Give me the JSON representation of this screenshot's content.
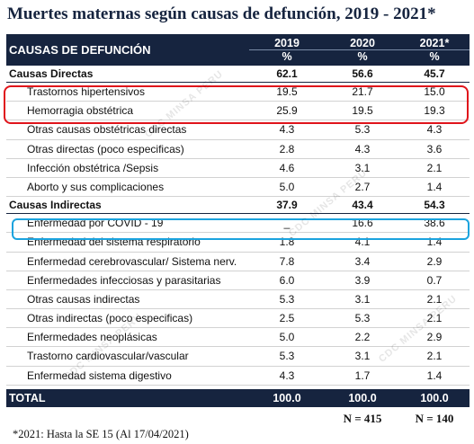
{
  "title": "Muertes maternas según causas de defunción, 2019 - 2021*",
  "header": {
    "label": "CAUSAS DE DEFUNCIÓN",
    "years": [
      "2019",
      "2020",
      "2021*"
    ],
    "unit": "%"
  },
  "directas": {
    "label": "Causas Directas",
    "values": [
      "62.1",
      "56.6",
      "45.7"
    ],
    "rows": [
      {
        "label": "Trastornos hipertensivos",
        "values": [
          "19.5",
          "21.7",
          "15.0"
        ]
      },
      {
        "label": "Hemorragia obstétrica",
        "values": [
          "25.9",
          "19.5",
          "19.3"
        ]
      },
      {
        "label": "Otras causas obstétricas directas",
        "values": [
          "4.3",
          "5.3",
          "4.3"
        ]
      },
      {
        "label": "Otras directas (poco especificas)",
        "values": [
          "2.8",
          "4.3",
          "3.6"
        ]
      },
      {
        "label": "Infección obstétrica /Sepsis",
        "values": [
          "4.6",
          "3.1",
          "2.1"
        ]
      },
      {
        "label": "Aborto y sus complicaciones",
        "values": [
          "5.0",
          "2.7",
          "1.4"
        ]
      }
    ]
  },
  "indirectas": {
    "label": "Causas Indirectas",
    "values": [
      "37.9",
      "43.4",
      "54.3"
    ],
    "rows": [
      {
        "label": "Enfermedad por COVID - 19",
        "values": [
          "_",
          "16.6",
          "38.6"
        ]
      },
      {
        "label": "Enfermedad del sistema respiratorio",
        "values": [
          "1.8",
          "4.1",
          "1.4"
        ]
      },
      {
        "label": "Enfermedad cerebrovascular/ Sistema nerv.",
        "values": [
          "7.8",
          "3.4",
          "2.9"
        ]
      },
      {
        "label": "Enfermedades infecciosas y parasitarias",
        "values": [
          "6.0",
          "3.9",
          "0.7"
        ]
      },
      {
        "label": "Otras causas indirectas",
        "values": [
          "5.3",
          "3.1",
          "2.1"
        ]
      },
      {
        "label": "Otras indirectas (poco especificas)",
        "values": [
          "2.5",
          "5.3",
          "2.1"
        ]
      },
      {
        "label": "Enfermedades neoplásicas",
        "values": [
          "5.0",
          "2.2",
          "2.9"
        ]
      },
      {
        "label": "Trastorno cardiovascular/vascular",
        "values": [
          "5.3",
          "3.1",
          "2.1"
        ]
      },
      {
        "label": "Enfermedad sistema digestivo",
        "values": [
          "4.3",
          "1.7",
          "1.4"
        ]
      }
    ]
  },
  "total": {
    "label": "TOTAL",
    "values": [
      "100.0",
      "100.0",
      "100.0"
    ]
  },
  "n_counts": [
    "N = 415",
    "N = 140"
  ],
  "footnote": "*2021: Hasta la SE 15 (Al 17/04/2021)",
  "watermark": "CDC MINSA PERU",
  "colors": {
    "header_bg": "#16243f",
    "highlight_red": "#e0141b",
    "highlight_blue": "#1ba3de"
  }
}
